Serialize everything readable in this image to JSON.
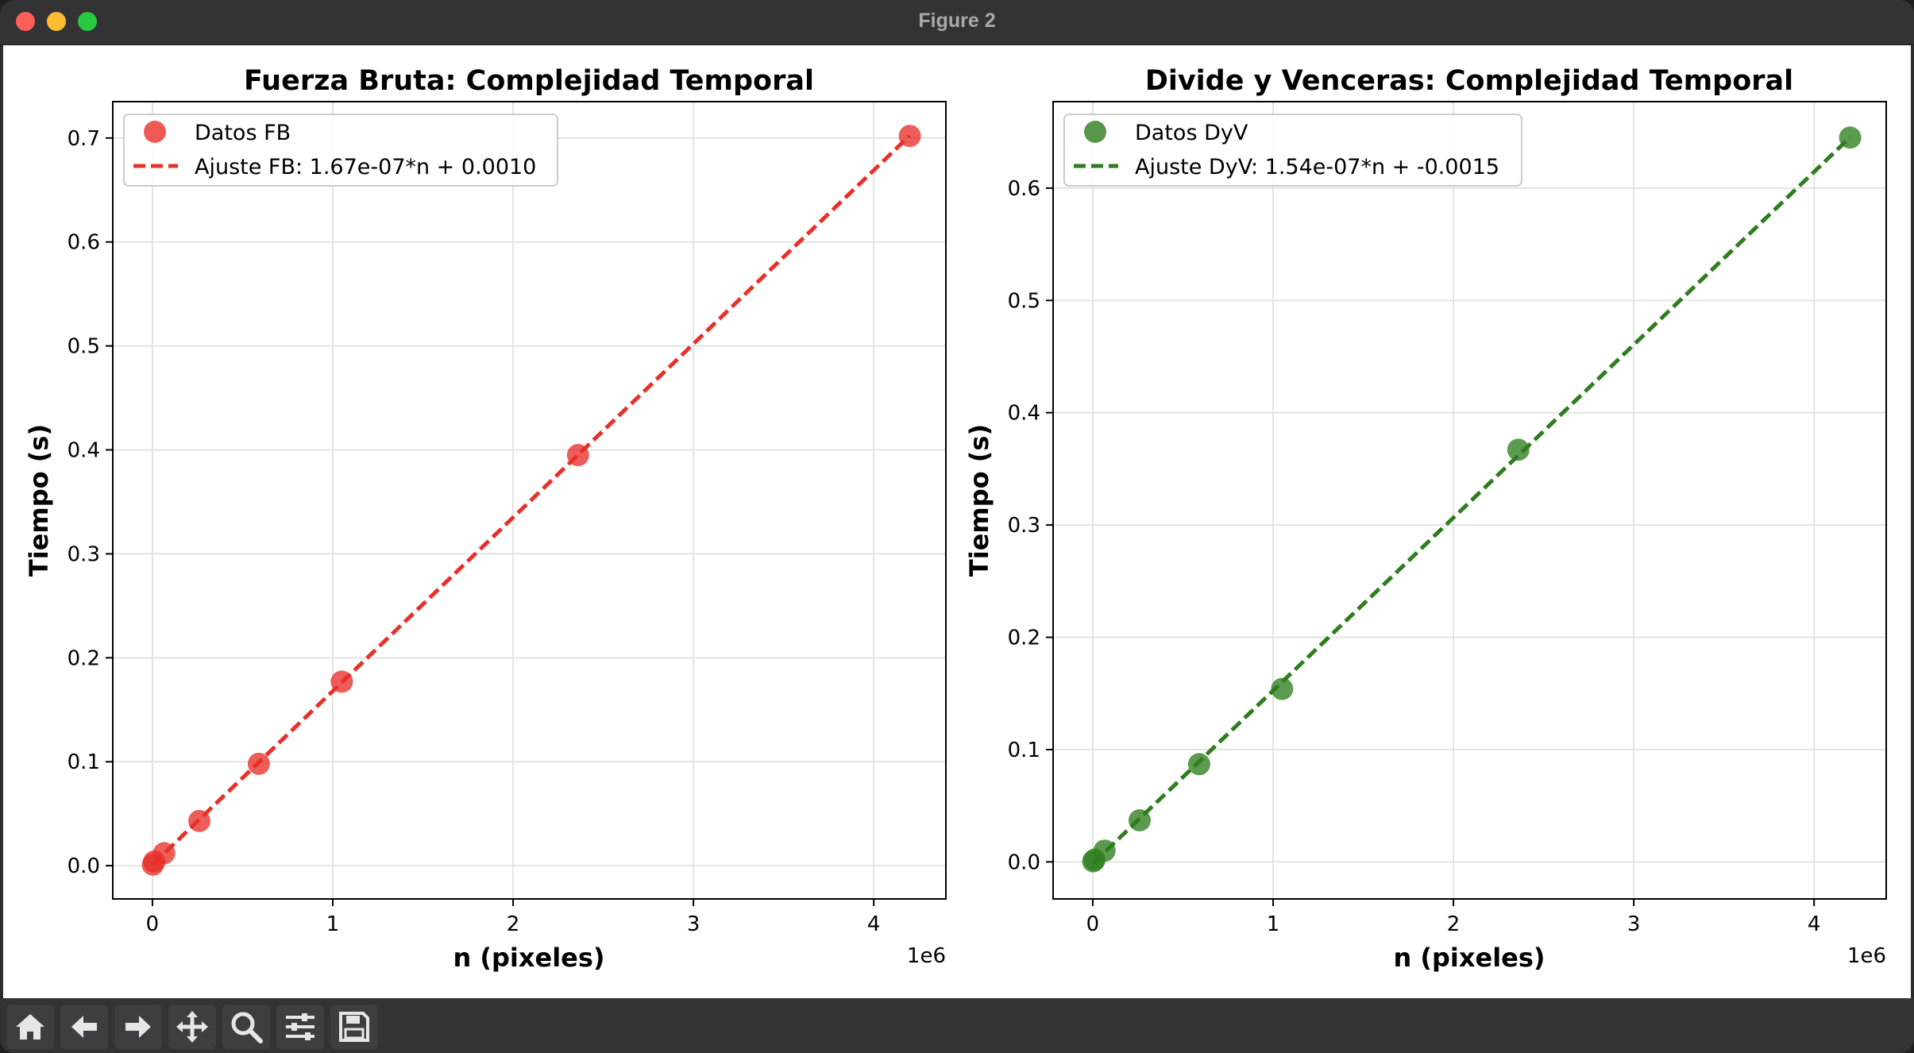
{
  "window": {
    "title": "Figure 2"
  },
  "chart_data": [
    {
      "type": "scatter",
      "title": "Fuerza Bruta: Complejidad Temporal",
      "xlabel": "n (pixeles)",
      "ylabel": "Tiempo (s)",
      "x_offset_label": "1e6",
      "xlim": [
        -0.22,
        4.4
      ],
      "ylim": [
        -0.032,
        0.735
      ],
      "xticks": [
        0,
        1,
        2,
        3,
        4
      ],
      "yticks": [
        0.0,
        0.1,
        0.2,
        0.3,
        0.4,
        0.5,
        0.6,
        0.7
      ],
      "grid": true,
      "legend_position": "upper-left",
      "color": "#e8302a",
      "series": [
        {
          "name": "Datos FB",
          "kind": "points",
          "x": [
            0.0025,
            0.01,
            0.065,
            0.26,
            0.59,
            1.05,
            2.36,
            4.2
          ],
          "y": [
            0.001,
            0.004,
            0.012,
            0.043,
            0.098,
            0.177,
            0.395,
            0.702
          ]
        },
        {
          "name": "Ajuste FB: 1.67e-07*n + 0.0010",
          "kind": "fit-line",
          "x": [
            0.0025,
            4.2
          ],
          "y": [
            0.0014,
            0.7024
          ]
        }
      ]
    },
    {
      "type": "scatter",
      "title": "Divide y Venceras: Complejidad Temporal",
      "xlabel": "n (pixeles)",
      "ylabel": "Tiempo (s)",
      "x_offset_label": "1e6",
      "xlim": [
        -0.22,
        4.4
      ],
      "ylim": [
        -0.033,
        0.677
      ],
      "xticks": [
        0,
        1,
        2,
        3,
        4
      ],
      "yticks": [
        0.0,
        0.1,
        0.2,
        0.3,
        0.4,
        0.5,
        0.6
      ],
      "grid": true,
      "legend_position": "upper-left",
      "color": "#2e7d1e",
      "series": [
        {
          "name": "Datos DyV",
          "kind": "points",
          "x": [
            0.0025,
            0.01,
            0.065,
            0.26,
            0.59,
            1.05,
            2.36,
            4.2
          ],
          "y": [
            0.0005,
            0.002,
            0.01,
            0.037,
            0.087,
            0.154,
            0.367,
            0.645
          ]
        },
        {
          "name": "Ajuste DyV: 1.54e-07*n + -0.0015",
          "kind": "fit-line",
          "x": [
            0.0025,
            4.2
          ],
          "y": [
            -0.0011,
            0.6453
          ]
        }
      ]
    }
  ],
  "toolbar": {
    "buttons": [
      {
        "icon": "home-icon"
      },
      {
        "icon": "back-arrow-icon"
      },
      {
        "icon": "forward-arrow-icon"
      },
      {
        "icon": "pan-move-icon"
      },
      {
        "icon": "zoom-magnifier-icon"
      },
      {
        "icon": "configure-subplots-icon"
      },
      {
        "icon": "save-figure-icon"
      }
    ]
  }
}
